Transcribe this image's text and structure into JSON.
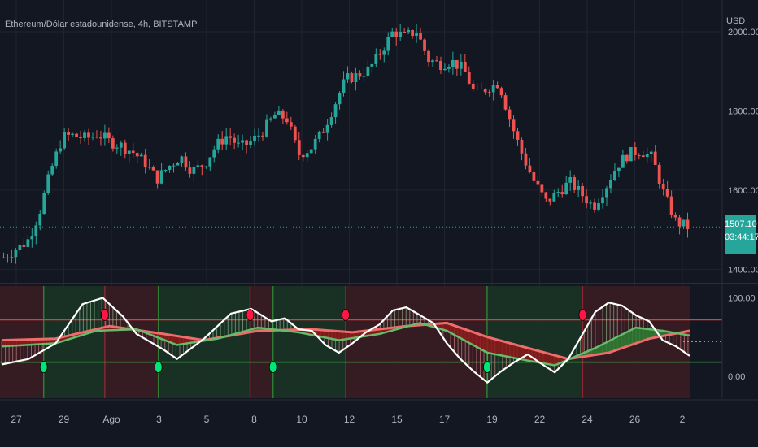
{
  "chart": {
    "title": "Ethereum/Dólar estadounidense, 4h, BITSTAMP",
    "currency": "USD",
    "last_price": "1507.10",
    "countdown": "03:44:17"
  },
  "colors": {
    "background": "#131722",
    "grid": "#1f2430",
    "up": "#26a69a",
    "down": "#ef5350",
    "osc_line": "#ffffff",
    "bull_zone": "#1b3326",
    "bear_zone": "#3a1d22",
    "upper_level": "#e53935",
    "lower_level": "#43a047"
  },
  "chart_data": [
    {
      "type": "candlestick",
      "ylabel": "USD",
      "y_ticks": [
        1400,
        1600,
        1800,
        2000
      ],
      "y_tick_labels": [
        "1400.00",
        "1600.00",
        "1800.00",
        "2000.00"
      ],
      "ylim": [
        1370,
        2080
      ],
      "x_tick_labels": [
        "27",
        "29",
        "Ago",
        "3",
        "5",
        "8",
        "10",
        "12",
        "15",
        "17",
        "19",
        "22",
        "24",
        "26",
        "2"
      ],
      "close_path": [
        [
          0,
          1430
        ],
        [
          4,
          1470
        ],
        [
          6,
          1540
        ],
        [
          8,
          1650
        ],
        [
          10,
          1735
        ],
        [
          12,
          1738
        ],
        [
          14,
          1730
        ],
        [
          16,
          1742
        ],
        [
          18,
          1722
        ],
        [
          20,
          1712
        ],
        [
          22,
          1695
        ],
        [
          24,
          1668
        ],
        [
          26,
          1628
        ],
        [
          28,
          1660
        ],
        [
          30,
          1685
        ],
        [
          32,
          1648
        ],
        [
          34,
          1665
        ],
        [
          36,
          1712
        ],
        [
          38,
          1740
        ],
        [
          40,
          1708
        ],
        [
          42,
          1722
        ],
        [
          44,
          1750
        ],
        [
          46,
          1790
        ],
        [
          48,
          1782
        ],
        [
          50,
          1690
        ],
        [
          52,
          1705
        ],
        [
          54,
          1745
        ],
        [
          56,
          1812
        ],
        [
          58,
          1880
        ],
        [
          60,
          1890
        ],
        [
          62,
          1905
        ],
        [
          64,
          1950
        ],
        [
          66,
          2000
        ],
        [
          68,
          1988
        ],
        [
          70,
          2002
        ],
        [
          72,
          1930
        ],
        [
          74,
          1918
        ],
        [
          76,
          1925
        ],
        [
          78,
          1905
        ],
        [
          80,
          1840
        ],
        [
          82,
          1858
        ],
        [
          84,
          1872
        ],
        [
          86,
          1770
        ],
        [
          88,
          1688
        ],
        [
          90,
          1620
        ],
        [
          92,
          1570
        ],
        [
          94,
          1595
        ],
        [
          96,
          1620
        ],
        [
          98,
          1590
        ],
        [
          100,
          1558
        ],
        [
          102,
          1605
        ],
        [
          104,
          1662
        ],
        [
          106,
          1692
        ],
        [
          108,
          1700
        ],
        [
          110,
          1682
        ],
        [
          112,
          1590
        ],
        [
          114,
          1520
        ],
        [
          116,
          1507
        ]
      ]
    },
    {
      "type": "line",
      "y_ticks": [
        0,
        100
      ],
      "y_tick_labels": [
        "0.00",
        "100.00"
      ],
      "ylim": [
        -28,
        115
      ],
      "upper_level": 72,
      "lower_level": 18,
      "series": [
        {
          "role": "oscillator",
          "points": [
            [
              0,
              15
            ],
            [
              4,
              22
            ],
            [
              8,
              42
            ],
            [
              12,
              92
            ],
            [
              15,
              100
            ],
            [
              18,
              76
            ],
            [
              20,
              54
            ],
            [
              24,
              34
            ],
            [
              26,
              22
            ],
            [
              30,
              48
            ],
            [
              34,
              80
            ],
            [
              37,
              86
            ],
            [
              40,
              70
            ],
            [
              42,
              74
            ],
            [
              44,
              60
            ],
            [
              46,
              58
            ],
            [
              48,
              40
            ],
            [
              50,
              30
            ],
            [
              52,
              42
            ],
            [
              54,
              56
            ],
            [
              56,
              66
            ],
            [
              58,
              84
            ],
            [
              60,
              88
            ],
            [
              62,
              78
            ],
            [
              64,
              68
            ],
            [
              66,
              42
            ],
            [
              68,
              22
            ],
            [
              70,
              6
            ],
            [
              72,
              -8
            ],
            [
              74,
              6
            ],
            [
              76,
              18
            ],
            [
              78,
              28
            ],
            [
              80,
              16
            ],
            [
              82,
              5
            ],
            [
              84,
              22
            ],
            [
              86,
              52
            ],
            [
              88,
              82
            ],
            [
              90,
              94
            ],
            [
              92,
              90
            ],
            [
              94,
              78
            ],
            [
              96,
              70
            ],
            [
              98,
              46
            ],
            [
              100,
              38
            ],
            [
              102,
              26
            ]
          ]
        },
        {
          "role": "fast average",
          "points": [
            [
              0,
              38
            ],
            [
              8,
              42
            ],
            [
              14,
              58
            ],
            [
              20,
              60
            ],
            [
              26,
              40
            ],
            [
              32,
              48
            ],
            [
              38,
              62
            ],
            [
              44,
              56
            ],
            [
              50,
              46
            ],
            [
              56,
              54
            ],
            [
              62,
              68
            ],
            [
              66,
              58
            ],
            [
              72,
              30
            ],
            [
              78,
              20
            ],
            [
              82,
              14
            ],
            [
              88,
              36
            ],
            [
              94,
              62
            ],
            [
              98,
              58
            ],
            [
              102,
              52
            ]
          ]
        },
        {
          "role": "slow average",
          "points": [
            [
              0,
              46
            ],
            [
              8,
              48
            ],
            [
              16,
              64
            ],
            [
              24,
              54
            ],
            [
              30,
              46
            ],
            [
              38,
              58
            ],
            [
              46,
              60
            ],
            [
              52,
              56
            ],
            [
              60,
              64
            ],
            [
              66,
              68
            ],
            [
              72,
              50
            ],
            [
              78,
              36
            ],
            [
              84,
              22
            ],
            [
              90,
              30
            ],
            [
              96,
              48
            ],
            [
              102,
              58
            ]
          ]
        }
      ],
      "crossovers": [
        {
          "x": 11,
          "signal": "buy"
        },
        {
          "x": 27,
          "signal": "sell"
        },
        {
          "x": 41,
          "signal": "buy"
        },
        {
          "x": 65,
          "signal": "sell"
        },
        {
          "x": 71,
          "signal": "buy"
        },
        {
          "x": 90,
          "signal": "sell"
        },
        {
          "x": 127,
          "signal": "buy"
        },
        {
          "x": 152,
          "signal": "sell"
        }
      ]
    }
  ]
}
